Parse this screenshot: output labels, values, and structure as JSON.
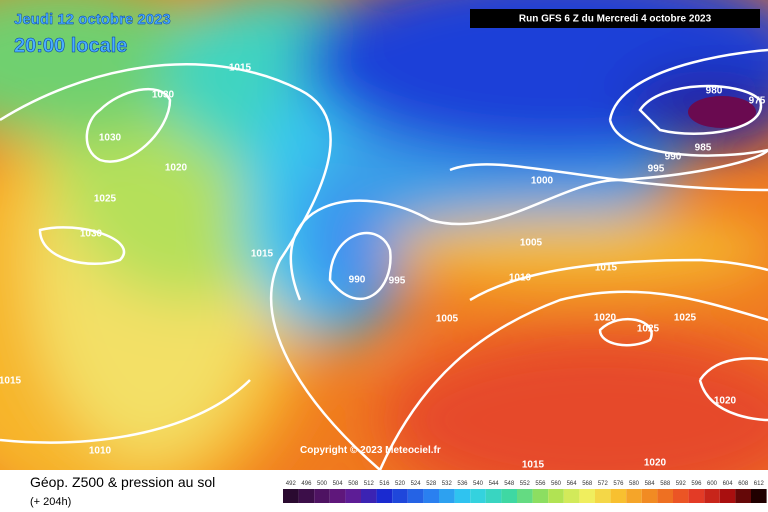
{
  "header": {
    "date": "Jeudi 12 octobre 2023",
    "time": "20:00 locale",
    "run": "Run GFS 6 Z du Mercredi 4 octobre 2023"
  },
  "map": {
    "isobar_labels": [
      "1015",
      "1030",
      "1030",
      "1020",
      "1025",
      "1030",
      "1015",
      "990",
      "995",
      "1000",
      "1005",
      "1010",
      "1005",
      "1015",
      "1020",
      "1025",
      "1025",
      "980",
      "975",
      "990",
      "985",
      "995",
      "1015",
      "1010",
      "1015",
      "1020",
      "1020"
    ],
    "copyright": "Copyright © 2023 Meteociel.fr"
  },
  "footer": {
    "title": "Géop. Z500 & pression au sol",
    "lead": "(+ 204h)"
  },
  "scale": {
    "labels": [
      492,
      496,
      500,
      504,
      508,
      512,
      516,
      520,
      524,
      528,
      532,
      536,
      540,
      544,
      548,
      552,
      556,
      560,
      564,
      568,
      572,
      576,
      580,
      584,
      588,
      592,
      596,
      600,
      604,
      608,
      612
    ]
  }
}
